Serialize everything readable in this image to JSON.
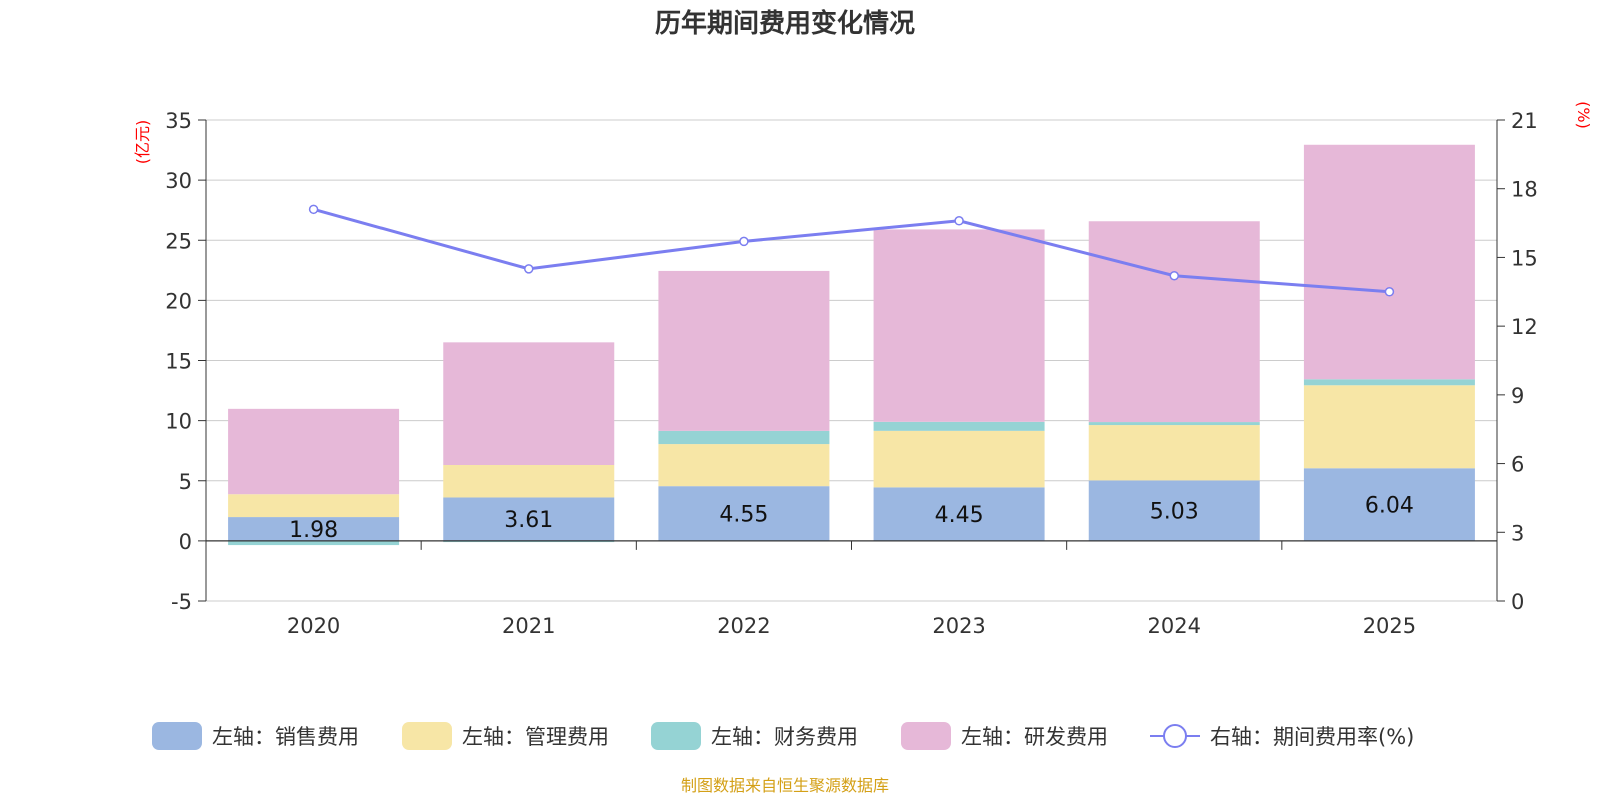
{
  "chart_data": {
    "type": "bar",
    "title": "历年期间费用变化情况",
    "categories": [
      "2020",
      "2021",
      "2022",
      "2023",
      "2024",
      "2025"
    ],
    "left_axis": {
      "unit": "(亿元)",
      "ylim": [
        -5,
        35
      ],
      "ticks": [
        "-5",
        "0",
        "5",
        "10",
        "15",
        "20",
        "25",
        "30",
        "35"
      ]
    },
    "right_axis": {
      "unit": "(%)",
      "ylim": [
        0,
        21
      ],
      "ticks": [
        "0",
        "3",
        "6",
        "9",
        "12",
        "15",
        "18",
        "21"
      ]
    },
    "stacked": true,
    "series": [
      {
        "name": "左轴：销售费用",
        "axis": "left",
        "color": "#9bb7e1",
        "values": [
          1.98,
          3.61,
          4.55,
          4.45,
          5.03,
          6.04
        ],
        "labels": [
          "1.98",
          "3.61",
          "4.55",
          "4.45",
          "5.03",
          "6.04"
        ]
      },
      {
        "name": "左轴：管理费用",
        "axis": "left",
        "color": "#f7e6a6",
        "values": [
          1.9,
          2.7,
          3.5,
          4.7,
          4.6,
          6.9
        ]
      },
      {
        "name": "左轴：财务费用",
        "axis": "left",
        "color": "#95d3d4",
        "values": [
          -0.35,
          -0.1,
          1.1,
          0.75,
          0.25,
          0.5
        ]
      },
      {
        "name": "左轴：研发费用",
        "axis": "left",
        "color": "#e6b8d8",
        "values": [
          7.1,
          10.2,
          13.3,
          16.0,
          16.7,
          19.5
        ]
      }
    ],
    "line": {
      "name": "右轴：期间费用率(%)",
      "axis": "right",
      "color": "#7b7ef0",
      "values": [
        17.1,
        14.5,
        15.7,
        16.6,
        14.2,
        13.5
      ]
    },
    "grid": true,
    "legend_position": "bottom"
  },
  "source": "制图数据来自恒生聚源数据库"
}
